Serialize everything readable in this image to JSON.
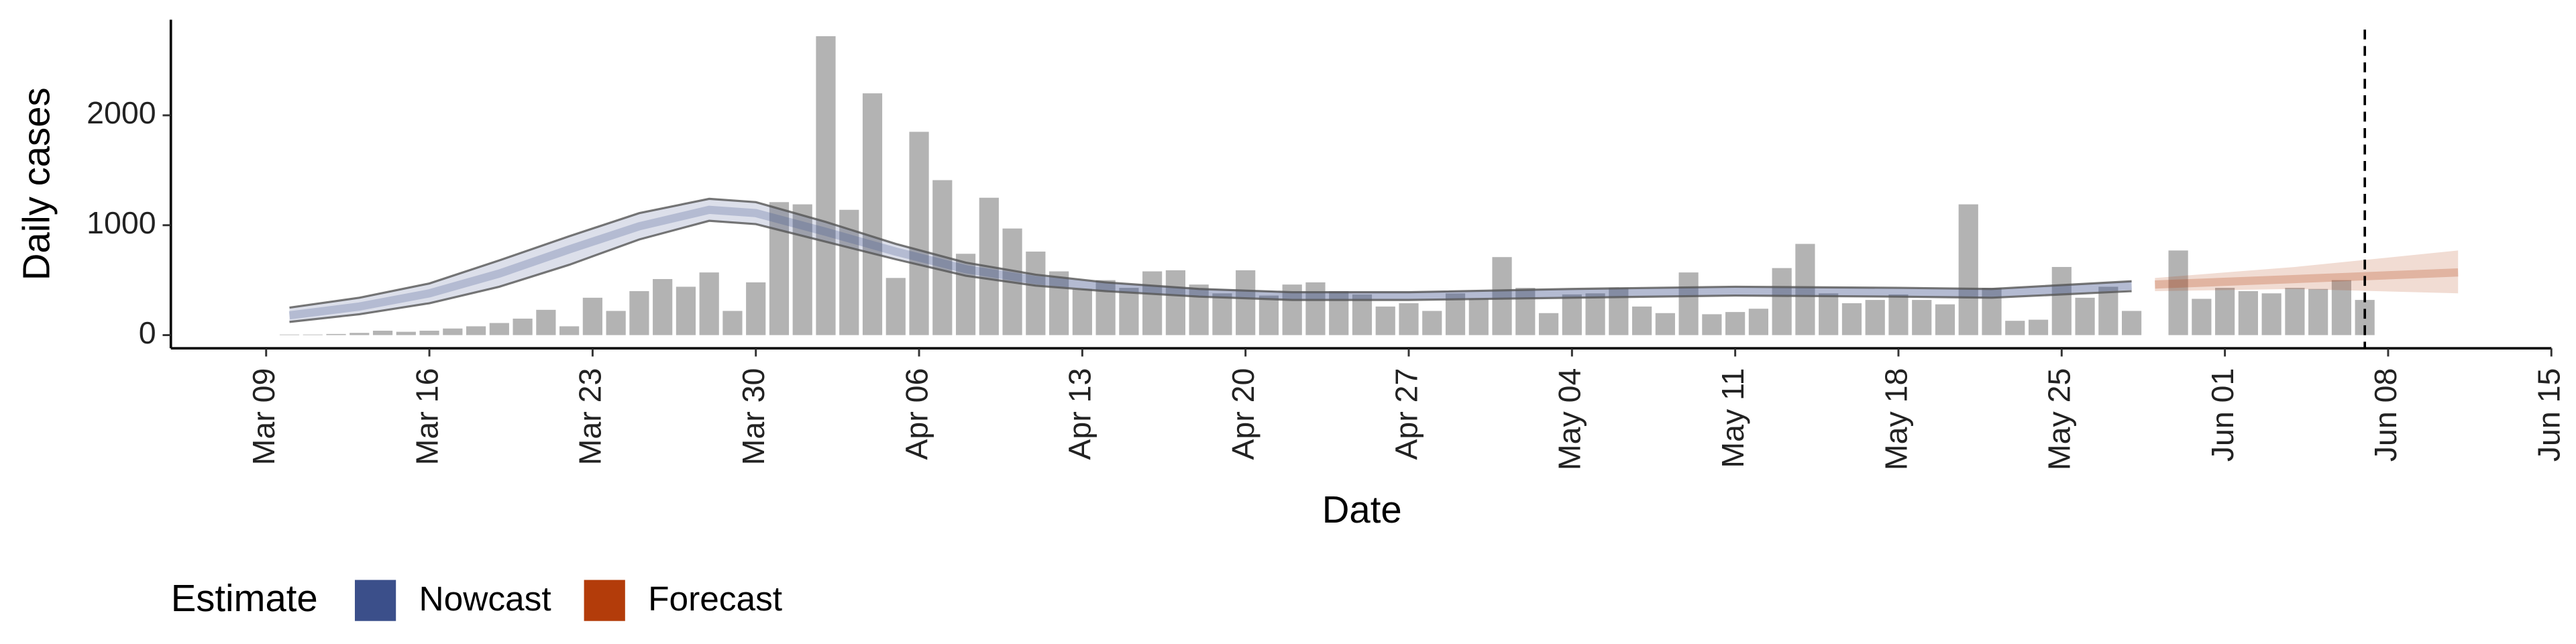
{
  "chart_data": {
    "type": "bar",
    "x_label": "Date",
    "y_label": "Daily cases",
    "legend_title": "Estimate",
    "categories": [
      "Mar 09",
      "Mar 10",
      "Mar 11",
      "Mar 12",
      "Mar 13",
      "Mar 14",
      "Mar 15",
      "Mar 16",
      "Mar 17",
      "Mar 18",
      "Mar 19",
      "Mar 20",
      "Mar 21",
      "Mar 22",
      "Mar 23",
      "Mar 24",
      "Mar 25",
      "Mar 26",
      "Mar 27",
      "Mar 28",
      "Mar 29",
      "Mar 30",
      "Mar 31",
      "Apr 01",
      "Apr 02",
      "Apr 03",
      "Apr 04",
      "Apr 05",
      "Apr 06",
      "Apr 07",
      "Apr 08",
      "Apr 09",
      "Apr 10",
      "Apr 11",
      "Apr 12",
      "Apr 13",
      "Apr 14",
      "Apr 15",
      "Apr 16",
      "Apr 17",
      "Apr 18",
      "Apr 19",
      "Apr 20",
      "Apr 21",
      "Apr 22",
      "Apr 23",
      "Apr 24",
      "Apr 25",
      "Apr 26",
      "Apr 27",
      "Apr 28",
      "Apr 29",
      "Apr 30",
      "May 01",
      "May 02",
      "May 03",
      "May 04",
      "May 05",
      "May 06",
      "May 07",
      "May 08",
      "May 09",
      "May 10",
      "May 11",
      "May 12",
      "May 13",
      "May 14",
      "May 15",
      "May 16",
      "May 17",
      "May 18",
      "May 19",
      "May 20",
      "May 21",
      "May 22",
      "May 23",
      "May 24",
      "May 25",
      "May 26",
      "May 27",
      "May 28",
      "May 29",
      "May 30",
      "May 31",
      "Jun 01",
      "Jun 02",
      "Jun 03",
      "Jun 04",
      "Jun 05",
      "Jun 06",
      "Jun 07",
      "Jun 08",
      "Jun 09",
      "Jun 10",
      "Jun 11",
      "Jun 12",
      "Jun 13",
      "Jun 14",
      "Jun 15"
    ],
    "values": [
      null,
      5,
      5,
      10,
      20,
      40,
      30,
      40,
      60,
      80,
      110,
      150,
      230,
      80,
      340,
      220,
      400,
      510,
      440,
      570,
      220,
      480,
      1210,
      1190,
      2720,
      1140,
      2200,
      520,
      1850,
      1410,
      740,
      1250,
      970,
      760,
      580,
      420,
      500,
      430,
      580,
      590,
      460,
      380,
      590,
      360,
      460,
      480,
      400,
      370,
      260,
      290,
      220,
      380,
      330,
      710,
      430,
      200,
      370,
      380,
      430,
      260,
      200,
      570,
      190,
      210,
      240,
      610,
      830,
      380,
      290,
      320,
      370,
      320,
      280,
      1190,
      430,
      130,
      140,
      620,
      340,
      440,
      220,
      null,
      770,
      330,
      430,
      400,
      380,
      430,
      420,
      500,
      320,
      null,
      null,
      null,
      null,
      null,
      null,
      null,
      null
    ],
    "bar_color": "#b3b3b3",
    "ylim": [
      -120,
      2870
    ],
    "yticks": [
      0,
      1000,
      2000
    ],
    "xticks": [
      "Mar 09",
      "Mar 16",
      "Mar 23",
      "Mar 30",
      "Apr 06",
      "Apr 13",
      "Apr 20",
      "Apr 27",
      "May 04",
      "May 11",
      "May 18",
      "May 25",
      "Jun 01",
      "Jun 08",
      "Jun 15"
    ],
    "vline": "Jun 07",
    "series": [
      {
        "name": "Nowcast",
        "color": "#3b4f8a",
        "x": [
          "Mar 10",
          "Mar 13",
          "Mar 16",
          "Mar 19",
          "Mar 22",
          "Mar 25",
          "Mar 28",
          "Mar 30",
          "Apr 02",
          "Apr 05",
          "Apr 08",
          "Apr 11",
          "Apr 14",
          "Apr 18",
          "Apr 22",
          "Apr 27",
          "May 04",
          "May 11",
          "May 18",
          "May 22",
          "May 28"
        ],
        "values": [
          180,
          260,
          380,
          560,
          780,
          990,
          1140,
          1110,
          940,
          760,
          600,
          500,
          440,
          390,
          360,
          360,
          380,
          400,
          390,
          380,
          450
        ],
        "lower": [
          120,
          190,
          290,
          440,
          640,
          870,
          1040,
          1010,
          850,
          690,
          540,
          450,
          400,
          350,
          320,
          320,
          340,
          360,
          350,
          340,
          400
        ],
        "upper": [
          250,
          340,
          470,
          680,
          900,
          1110,
          1240,
          1210,
          1030,
          830,
          660,
          550,
          480,
          420,
          390,
          390,
          420,
          440,
          430,
          420,
          490
        ]
      },
      {
        "name": "Forecast",
        "color": "#b33c0a",
        "x": [
          "May 29",
          "Jun 04",
          "Jun 11"
        ],
        "values": [
          460,
          510,
          570
        ],
        "lower": [
          400,
          420,
          380
        ],
        "upper": [
          520,
          620,
          770
        ]
      }
    ]
  }
}
